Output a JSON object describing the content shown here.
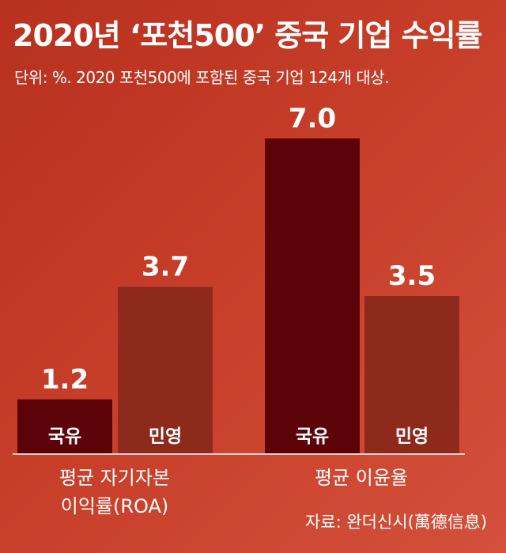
{
  "header": {
    "title": "2020년 ‘포천500’ 중국 기업 수익률",
    "subtitle": "단위: %. 2020 포천500에 포함된 중국 기업 124개 대상."
  },
  "footer": {
    "source": "자료: 완더신시(萬德信息)"
  },
  "colors": {
    "state": "#5c0309",
    "private": "#8e2a1c",
    "text": "#ffffff"
  },
  "chart_data": {
    "type": "bar",
    "title": "2020년 ‘포천500’ 중국 기업 수익률",
    "unit": "%",
    "categories": [
      {
        "lines": [
          "평균 자기자본",
          "이익률(ROA)"
        ]
      },
      {
        "lines": [
          "평균 이윤율"
        ]
      }
    ],
    "series": [
      {
        "name": "국유",
        "values": [
          1.2,
          7.0
        ]
      },
      {
        "name": "민영",
        "values": [
          3.7,
          3.5
        ]
      }
    ],
    "ylim": [
      0,
      7.0
    ],
    "grid": false,
    "legend": "none"
  }
}
